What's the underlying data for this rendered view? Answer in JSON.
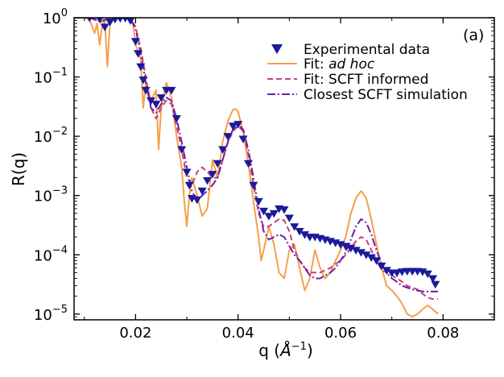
{
  "chart_data": {
    "type": "line",
    "panel_label": "(a)",
    "xlabel": "q (Å⁻¹)",
    "xlabel_parts": {
      "prefix": "q (",
      "unit": "Å",
      "exponent": "−1",
      "suffix": ")"
    },
    "ylabel": "R(q)",
    "xlim": [
      0.008,
      0.09
    ],
    "ylim": [
      8e-06,
      1.0
    ],
    "yscale": "log",
    "grid": false,
    "legend_position": "top-right",
    "x_ticks": [
      0.02,
      0.04,
      0.06,
      0.08
    ],
    "x_tick_labels": [
      "0.02",
      "0.04",
      "0.06",
      "0.08"
    ],
    "y_ticks": [
      1,
      0.1,
      0.01,
      0.001,
      0.0001,
      1e-05
    ],
    "y_tick_labels": [
      {
        "base": "10",
        "exp": "0"
      },
      {
        "base": "10",
        "exp": "−1"
      },
      {
        "base": "10",
        "exp": "−2"
      },
      {
        "base": "10",
        "exp": "−3"
      },
      {
        "base": "10",
        "exp": "−4"
      },
      {
        "base": "10",
        "exp": "−5"
      }
    ],
    "series": [
      {
        "name": "Experimental data",
        "legend_label": "Experimental data",
        "kind": "scatter",
        "marker": "triangle-down",
        "color": "#1a1a9a",
        "x": [
          0.011,
          0.013,
          0.014,
          0.015,
          0.016,
          0.017,
          0.018,
          0.019,
          0.02,
          0.0205,
          0.021,
          0.0215,
          0.022,
          0.023,
          0.024,
          0.025,
          0.026,
          0.027,
          0.028,
          0.029,
          0.03,
          0.0305,
          0.031,
          0.032,
          0.033,
          0.034,
          0.035,
          0.036,
          0.037,
          0.038,
          0.039,
          0.04,
          0.041,
          0.042,
          0.043,
          0.044,
          0.045,
          0.046,
          0.047,
          0.048,
          0.049,
          0.05,
          0.051,
          0.052,
          0.053,
          0.054,
          0.055,
          0.056,
          0.057,
          0.058,
          0.059,
          0.06,
          0.061,
          0.062,
          0.063,
          0.064,
          0.065,
          0.066,
          0.067,
          0.068,
          0.069,
          0.07,
          0.071,
          0.072,
          0.073,
          0.074,
          0.075,
          0.076,
          0.077,
          0.078,
          0.0785
        ],
        "y": [
          1.0,
          0.95,
          0.7,
          0.85,
          0.95,
          0.98,
          0.99,
          0.9,
          0.4,
          0.25,
          0.15,
          0.09,
          0.06,
          0.04,
          0.035,
          0.045,
          0.06,
          0.06,
          0.02,
          0.006,
          0.0025,
          0.0015,
          0.0009,
          0.00085,
          0.0012,
          0.0018,
          0.0023,
          0.0035,
          0.006,
          0.01,
          0.015,
          0.016,
          0.009,
          0.0035,
          0.0015,
          0.0008,
          0.00055,
          0.00045,
          0.0005,
          0.0006,
          0.00058,
          0.00042,
          0.0003,
          0.00025,
          0.00022,
          0.0002,
          0.0002,
          0.00019,
          0.00018,
          0.00017,
          0.00016,
          0.00015,
          0.00014,
          0.00013,
          0.00012,
          0.00011,
          0.0001,
          9e-05,
          8e-05,
          6.5e-05,
          5.5e-05,
          5e-05,
          5e-05,
          5.2e-05,
          5.3e-05,
          5.3e-05,
          5.3e-05,
          5.2e-05,
          4.8e-05,
          4e-05,
          3.2e-05
        ]
      },
      {
        "name": "Fit: ad hoc",
        "legend_prefix": "Fit: ",
        "legend_italic": "ad hoc",
        "kind": "line",
        "dash": "solid",
        "color": "#f5a04a",
        "x": [
          0.008,
          0.01,
          0.011,
          0.012,
          0.0125,
          0.013,
          0.0135,
          0.014,
          0.0145,
          0.015,
          0.0155,
          0.016,
          0.017,
          0.018,
          0.019,
          0.0195,
          0.02,
          0.021,
          0.0215,
          0.022,
          0.0225,
          0.023,
          0.024,
          0.0245,
          0.025,
          0.026,
          0.027,
          0.028,
          0.029,
          0.0295,
          0.03,
          0.0305,
          0.031,
          0.032,
          0.033,
          0.034,
          0.0345,
          0.035,
          0.036,
          0.037,
          0.038,
          0.039,
          0.0395,
          0.04,
          0.041,
          0.042,
          0.043,
          0.044,
          0.0445,
          0.045,
          0.046,
          0.047,
          0.048,
          0.049,
          0.05,
          0.051,
          0.052,
          0.053,
          0.054,
          0.055,
          0.056,
          0.057,
          0.058,
          0.059,
          0.06,
          0.061,
          0.062,
          0.063,
          0.064,
          0.065,
          0.066,
          0.067,
          0.068,
          0.069,
          0.07,
          0.071,
          0.072,
          0.073,
          0.074,
          0.075,
          0.076,
          0.077,
          0.078,
          0.079
        ],
        "y": [
          1.0,
          1.0,
          0.95,
          0.55,
          0.8,
          0.35,
          0.75,
          0.85,
          0.15,
          0.8,
          0.95,
          0.99,
          0.98,
          0.97,
          0.99,
          0.8,
          0.35,
          0.2,
          0.03,
          0.08,
          0.06,
          0.04,
          0.06,
          0.006,
          0.03,
          0.08,
          0.045,
          0.01,
          0.003,
          0.0008,
          0.0003,
          0.001,
          0.002,
          0.001,
          0.00045,
          0.0006,
          0.0015,
          0.004,
          0.002,
          0.008,
          0.018,
          0.028,
          0.029,
          0.026,
          0.012,
          0.0035,
          0.0008,
          0.0002,
          8e-05,
          0.00012,
          0.0003,
          0.00015,
          5e-05,
          4e-05,
          0.00012,
          0.00015,
          6e-05,
          2.5e-05,
          4e-05,
          0.00012,
          6e-05,
          4e-05,
          5e-05,
          8e-05,
          0.00012,
          0.0002,
          0.0005,
          0.0009,
          0.0012,
          0.0009,
          0.0004,
          0.00015,
          6e-05,
          3e-05,
          2.5e-05,
          2e-05,
          1.5e-05,
          1e-05,
          9e-06,
          1e-05,
          1.2e-05,
          1.4e-05,
          1.2e-05,
          1e-05
        ]
      },
      {
        "name": "Fit: SCFT informed",
        "legend_label": "Fit: SCFT informed",
        "kind": "line",
        "dash": "dashed",
        "color": "#c8407a",
        "x": [
          0.008,
          0.011,
          0.013,
          0.015,
          0.017,
          0.018,
          0.019,
          0.02,
          0.021,
          0.022,
          0.023,
          0.024,
          0.025,
          0.026,
          0.027,
          0.028,
          0.029,
          0.03,
          0.031,
          0.032,
          0.033,
          0.034,
          0.035,
          0.036,
          0.037,
          0.038,
          0.039,
          0.04,
          0.041,
          0.042,
          0.043,
          0.044,
          0.045,
          0.046,
          0.047,
          0.048,
          0.049,
          0.05,
          0.051,
          0.052,
          0.053,
          0.054,
          0.055,
          0.056,
          0.057,
          0.058,
          0.059,
          0.06,
          0.061,
          0.062,
          0.063,
          0.064,
          0.065,
          0.066,
          0.067,
          0.068,
          0.069,
          0.07,
          0.071,
          0.072,
          0.073,
          0.074,
          0.075,
          0.076,
          0.077,
          0.078,
          0.079
        ],
        "y": [
          1.0,
          1.0,
          0.85,
          0.93,
          0.99,
          0.98,
          0.97,
          0.7,
          0.3,
          0.1,
          0.03,
          0.02,
          0.03,
          0.04,
          0.035,
          0.015,
          0.006,
          0.002,
          0.0015,
          0.0025,
          0.003,
          0.0025,
          0.002,
          0.002,
          0.004,
          0.008,
          0.012,
          0.015,
          0.012,
          0.005,
          0.0015,
          0.0005,
          0.0003,
          0.0003,
          0.00035,
          0.0004,
          0.00038,
          0.00025,
          0.00012,
          8e-05,
          6e-05,
          5e-05,
          5e-05,
          5e-05,
          5.5e-05,
          6e-05,
          7e-05,
          8e-05,
          0.0001,
          0.00013,
          0.00017,
          0.0002,
          0.00018,
          0.00012,
          8e-05,
          5.5e-05,
          5e-05,
          4.5e-05,
          4e-05,
          3.5e-05,
          3e-05,
          2.8e-05,
          2.6e-05,
          2.2e-05,
          1.9e-05,
          1.8e-05,
          1.8e-05
        ]
      },
      {
        "name": "Closest SCFT simulation",
        "legend_label": "Closest SCFT simulation",
        "kind": "line",
        "dash": "dashdot",
        "color": "#6b1fa8",
        "x": [
          0.008,
          0.011,
          0.013,
          0.015,
          0.017,
          0.018,
          0.019,
          0.02,
          0.021,
          0.022,
          0.023,
          0.024,
          0.025,
          0.026,
          0.027,
          0.028,
          0.029,
          0.03,
          0.031,
          0.032,
          0.033,
          0.034,
          0.035,
          0.036,
          0.037,
          0.038,
          0.039,
          0.04,
          0.041,
          0.042,
          0.043,
          0.044,
          0.045,
          0.046,
          0.047,
          0.048,
          0.049,
          0.05,
          0.051,
          0.052,
          0.053,
          0.054,
          0.055,
          0.056,
          0.057,
          0.058,
          0.059,
          0.06,
          0.061,
          0.062,
          0.063,
          0.064,
          0.065,
          0.066,
          0.067,
          0.068,
          0.069,
          0.07,
          0.071,
          0.072,
          0.073,
          0.074,
          0.075,
          0.076,
          0.077,
          0.078,
          0.079
        ],
        "y": [
          1.0,
          1.0,
          0.9,
          0.95,
          0.99,
          0.98,
          0.96,
          0.65,
          0.25,
          0.08,
          0.03,
          0.025,
          0.035,
          0.045,
          0.04,
          0.02,
          0.008,
          0.003,
          0.0012,
          0.0008,
          0.001,
          0.0012,
          0.0015,
          0.002,
          0.004,
          0.008,
          0.013,
          0.016,
          0.013,
          0.006,
          0.002,
          0.0006,
          0.00025,
          0.00018,
          0.0002,
          0.00022,
          0.0002,
          0.00014,
          0.0001,
          8e-05,
          6e-05,
          4.5e-05,
          4e-05,
          4e-05,
          4.5e-05,
          5e-05,
          6e-05,
          8e-05,
          0.00011,
          0.00018,
          0.0003,
          0.0004,
          0.00035,
          0.00022,
          0.00012,
          7e-05,
          5e-05,
          4e-05,
          3.5e-05,
          3e-05,
          2.8e-05,
          2.6e-05,
          2.5e-05,
          2.4e-05,
          2.4e-05,
          2.4e-05,
          2.4e-05
        ]
      }
    ]
  }
}
